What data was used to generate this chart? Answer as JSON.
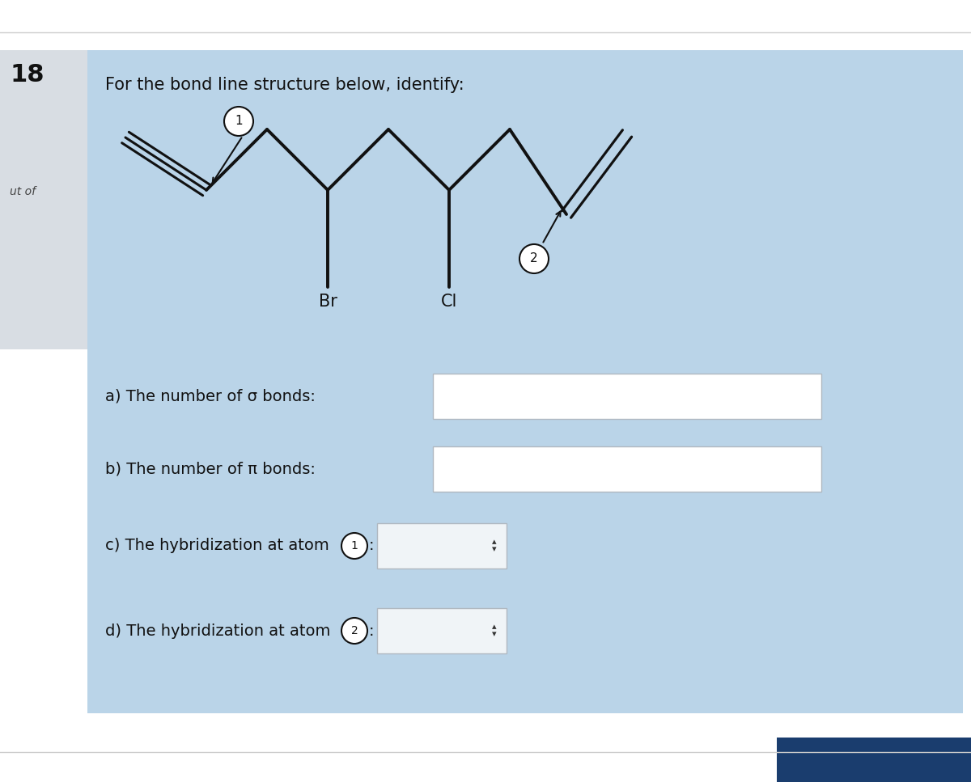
{
  "bg_white": "#ffffff",
  "bg_light_blue": "#bad4e8",
  "bg_sidebar": "#d8dde3",
  "line_color": "#111111",
  "line_width": 2.8,
  "title_text": "For the bond line structure below, identify:",
  "title_fontsize": 15,
  "question_fontsize": 14,
  "number_label": "18",
  "out_of_label": "ut of",
  "question_a": "a) The number of σ bonds:",
  "question_b": "b) The number of π bonds:",
  "question_c_pre": "c) The hybridization at atom ",
  "question_c_num": "1",
  "question_c_post": ":",
  "question_d_pre": "d) The hybridization at atom ",
  "question_d_num": "2",
  "question_d_post": ":",
  "top_line_color": "#cccccc",
  "bottom_bar_color": "#1a3d6e",
  "box_edge_color": "#b0b8c0",
  "box_face_color": "#f0f4f7"
}
